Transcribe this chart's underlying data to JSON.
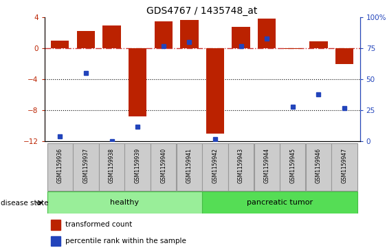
{
  "title": "GDS4767 / 1435748_at",
  "samples": [
    "GSM1159936",
    "GSM1159937",
    "GSM1159938",
    "GSM1159939",
    "GSM1159940",
    "GSM1159941",
    "GSM1159942",
    "GSM1159943",
    "GSM1159944",
    "GSM1159945",
    "GSM1159946",
    "GSM1159947"
  ],
  "red_values": [
    1.0,
    2.3,
    3.0,
    -8.8,
    3.5,
    3.7,
    -11.0,
    2.8,
    3.9,
    -0.1,
    0.9,
    -2.0
  ],
  "blue_percentiles": [
    4,
    55,
    0,
    12,
    77,
    80,
    2,
    77,
    83,
    28,
    38,
    27
  ],
  "ylim_left": [
    -12,
    4
  ],
  "ylim_right": [
    0,
    100
  ],
  "yticks_left": [
    -12,
    -8,
    -4,
    0,
    4
  ],
  "yticks_right": [
    0,
    25,
    50,
    75,
    100
  ],
  "ytick_labels_right": [
    "0",
    "25",
    "50",
    "75",
    "100%"
  ],
  "bar_color": "#bb2200",
  "dot_color": "#2244bb",
  "healthy_color": "#99ee99",
  "tumor_color": "#55dd55",
  "healthy_samples": 6,
  "tumor_samples": 6,
  "group_labels": [
    "healthy",
    "pancreatic tumor"
  ],
  "disease_state_label": "disease state",
  "legend1": "transformed count",
  "legend2": "percentile rank within the sample",
  "dotted_line_y": [
    -4,
    -8
  ],
  "zero_line_color": "#cc3333",
  "hline_color": "black",
  "label_box_color": "#cccccc",
  "label_box_edge": "#999999",
  "bar_width": 0.7
}
